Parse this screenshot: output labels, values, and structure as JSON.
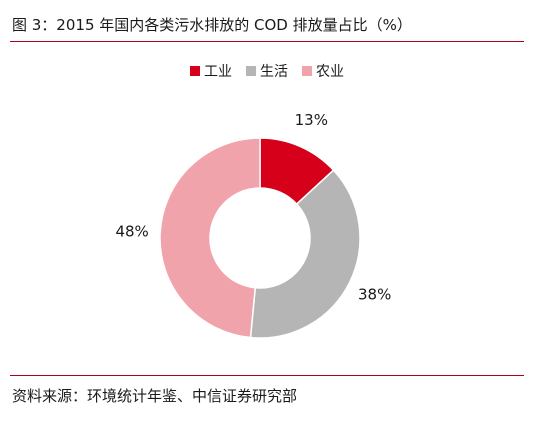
{
  "header": {
    "title": "图 3：2015 年国内各类污水排放的 COD 排放量占比（%）"
  },
  "chart_data": {
    "type": "pie",
    "donut": true,
    "title": "",
    "categories": [
      "工业",
      "生活",
      "农业"
    ],
    "values": [
      13,
      38,
      48
    ],
    "value_labels": [
      "13%",
      "38%",
      "48%"
    ],
    "colors": [
      "#d7001a",
      "#b5b5b5",
      "#f0a3ab"
    ],
    "legend_position": "top-center"
  },
  "footer": {
    "source": "资料来源：环境统计年鉴、中信证券研究部"
  }
}
